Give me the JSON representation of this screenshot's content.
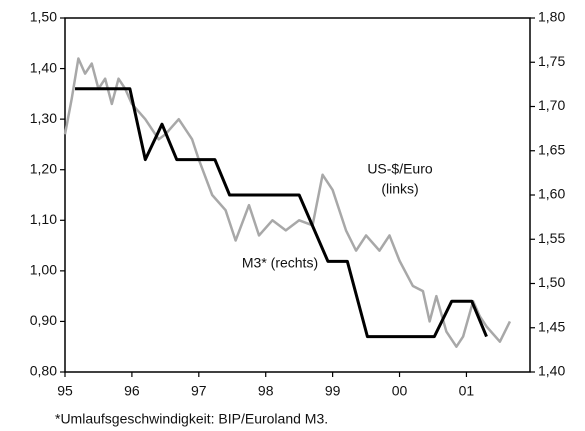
{
  "chart_data": {
    "type": "line",
    "xlim": [
      1995,
      2001.95
    ],
    "xticks": [
      {
        "value": 1995,
        "label": "95"
      },
      {
        "value": 1996,
        "label": "96"
      },
      {
        "value": 1997,
        "label": "97"
      },
      {
        "value": 1998,
        "label": "98"
      },
      {
        "value": 1999,
        "label": "99"
      },
      {
        "value": 2000,
        "label": "00"
      },
      {
        "value": 2001,
        "label": "01"
      }
    ],
    "ylim": [
      0.8,
      1.5
    ],
    "yticks": [
      {
        "value": 0.8,
        "label": "0,80"
      },
      {
        "value": 0.9,
        "label": "0,90"
      },
      {
        "value": 1.0,
        "label": "1,00"
      },
      {
        "value": 1.1,
        "label": "1,10"
      },
      {
        "value": 1.2,
        "label": "1,20"
      },
      {
        "value": 1.3,
        "label": "1,30"
      },
      {
        "value": 1.4,
        "label": "1,40"
      },
      {
        "value": 1.5,
        "label": "1,50"
      }
    ],
    "y2lim": [
      1.4,
      1.8
    ],
    "y2ticks": [
      {
        "value": 1.4,
        "label": "1,40"
      },
      {
        "value": 1.45,
        "label": "1,45"
      },
      {
        "value": 1.5,
        "label": "1,50"
      },
      {
        "value": 1.55,
        "label": "1,55"
      },
      {
        "value": 1.6,
        "label": "1,60"
      },
      {
        "value": 1.65,
        "label": "1,65"
      },
      {
        "value": 1.7,
        "label": "1,70"
      },
      {
        "value": 1.75,
        "label": "1,75"
      },
      {
        "value": 1.8,
        "label": "1,80"
      }
    ],
    "series": [
      {
        "color": "#a8a8a8",
        "axis": "y",
        "x": [
          1995.0,
          1995.1,
          1995.2,
          1995.3,
          1995.4,
          1995.5,
          1995.6,
          1995.7,
          1995.8,
          1995.9,
          1996.0,
          1996.2,
          1996.4,
          1996.5,
          1996.7,
          1996.9,
          1997.0,
          1997.2,
          1997.4,
          1997.55,
          1997.75,
          1997.9,
          1998.1,
          1998.3,
          1998.5,
          1998.7,
          1998.85,
          1999.0,
          1999.2,
          1999.35,
          1999.5,
          1999.7,
          1999.85,
          2000.0,
          2000.2,
          2000.35,
          2000.45,
          2000.55,
          2000.7,
          2000.85,
          2000.95,
          2001.1,
          2001.2,
          2001.3,
          2001.5,
          2001.65
        ],
        "values": [
          1.27,
          1.34,
          1.42,
          1.39,
          1.41,
          1.36,
          1.38,
          1.33,
          1.38,
          1.36,
          1.33,
          1.3,
          1.26,
          1.27,
          1.3,
          1.26,
          1.22,
          1.15,
          1.12,
          1.06,
          1.13,
          1.07,
          1.1,
          1.08,
          1.1,
          1.09,
          1.19,
          1.16,
          1.08,
          1.04,
          1.07,
          1.04,
          1.07,
          1.02,
          0.97,
          0.96,
          0.9,
          0.95,
          0.88,
          0.85,
          0.87,
          0.94,
          0.91,
          0.89,
          0.86,
          0.9
        ]
      },
      {
        "color": "#000000",
        "axis": "y2",
        "x": [
          1995.15,
          1995.97,
          1996.2,
          1996.45,
          1996.67,
          1997.24,
          1997.46,
          1998.5,
          1998.93,
          1999.22,
          1999.52,
          2000.52,
          2000.78,
          2001.08,
          2001.3
        ],
        "values": [
          1.72,
          1.72,
          1.64,
          1.68,
          1.64,
          1.64,
          1.6,
          1.6,
          1.525,
          1.525,
          1.44,
          1.44,
          1.48,
          1.48,
          1.44
        ]
      }
    ],
    "annotations": [
      "US-$/Euro",
      "(links)",
      "M3* (rechts)"
    ],
    "footnote": "*Umlaufsgeschwindigkeit: BIP/Euroland M3."
  }
}
